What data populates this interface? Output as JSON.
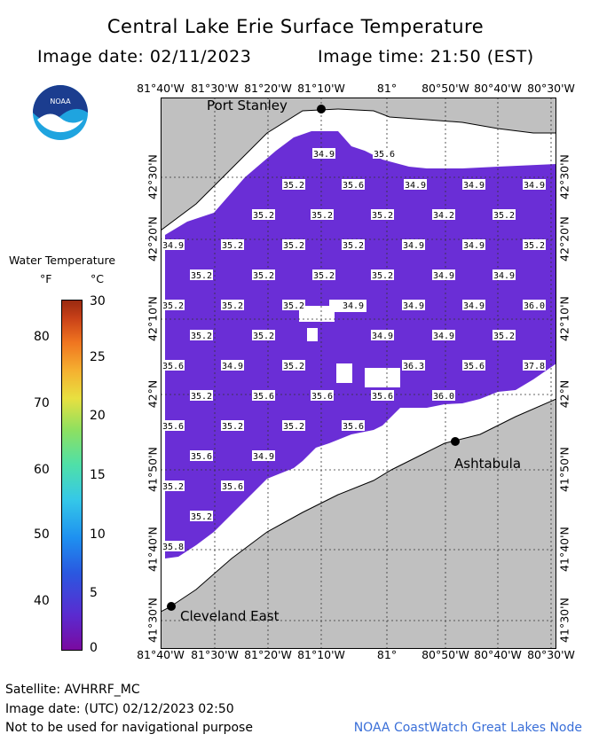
{
  "header": {
    "title": "Central Lake Erie Surface Temperature",
    "date_line": "Image date: 02/11/2023",
    "time_line": "Image time: 21:50 (EST)"
  },
  "logo": {
    "text": "NOAA",
    "icon": "noaa-logo"
  },
  "map": {
    "lon_labels": [
      "81°40'W",
      "81°30'W",
      "81°20'W",
      "81°10'W",
      "81°",
      "80°50'W",
      "80°40'W",
      "80°30'W"
    ],
    "lat_labels_left": [
      "42°30'N",
      "42°20'N",
      "42°10'N",
      "42°N",
      "41°50'N",
      "41°40'N",
      "41°30'N"
    ],
    "lat_labels_right": [
      "42°30'N",
      "42°20'N",
      "42°10'N",
      "42°N",
      "41°50'N",
      "41°40'N",
      "41°30'N"
    ],
    "cities": [
      {
        "name": "Port Stanley"
      },
      {
        "name": "Ashtabula"
      },
      {
        "name": "Cleveland East"
      }
    ],
    "temperature_labels": [
      "34.9",
      "35.6",
      "35.2",
      "35.6",
      "34.9",
      "34.9",
      "34.9",
      "35.2",
      "35.2",
      "35.2",
      "34.2",
      "35.2",
      "34.9",
      "35.2",
      "35.2",
      "35.2",
      "34.9",
      "34.9",
      "35.2",
      "35.2",
      "35.2",
      "35.2",
      "35.2",
      "34.9",
      "34.9",
      "35.2",
      "35.2",
      "35.2",
      "34.9",
      "34.9",
      "34.9",
      "36.0",
      "35.2",
      "35.2",
      "34.9",
      "34.9",
      "35.2",
      "35.6",
      "34.9",
      "35.2",
      "36.3",
      "35.6",
      "37.8",
      "35.2",
      "35.6",
      "35.6",
      "35.6",
      "36.0",
      "35.6",
      "35.2",
      "35.2",
      "35.6",
      "35.6",
      "34.9",
      "35.2",
      "35.6",
      "35.2",
      "35.8"
    ]
  },
  "legend": {
    "title": "Water Temperature",
    "unit_f": "°F",
    "unit_c": "°C",
    "f_ticks": [
      "80",
      "70",
      "60",
      "50",
      "40"
    ],
    "c_ticks": [
      "30",
      "25",
      "20",
      "15",
      "10",
      "5",
      "0"
    ]
  },
  "footer": {
    "satellite": "Satellite: AVHRRF_MC",
    "utc_date": "Image date: (UTC) 02/12/2023  02:50",
    "disclaimer": "Not to be used for navigational purpose",
    "credit": "NOAA CoastWatch Great Lakes Node"
  },
  "colors": {
    "water": "#6a2ed6",
    "land": "#c0c0c0",
    "ice": "#ffffff"
  }
}
